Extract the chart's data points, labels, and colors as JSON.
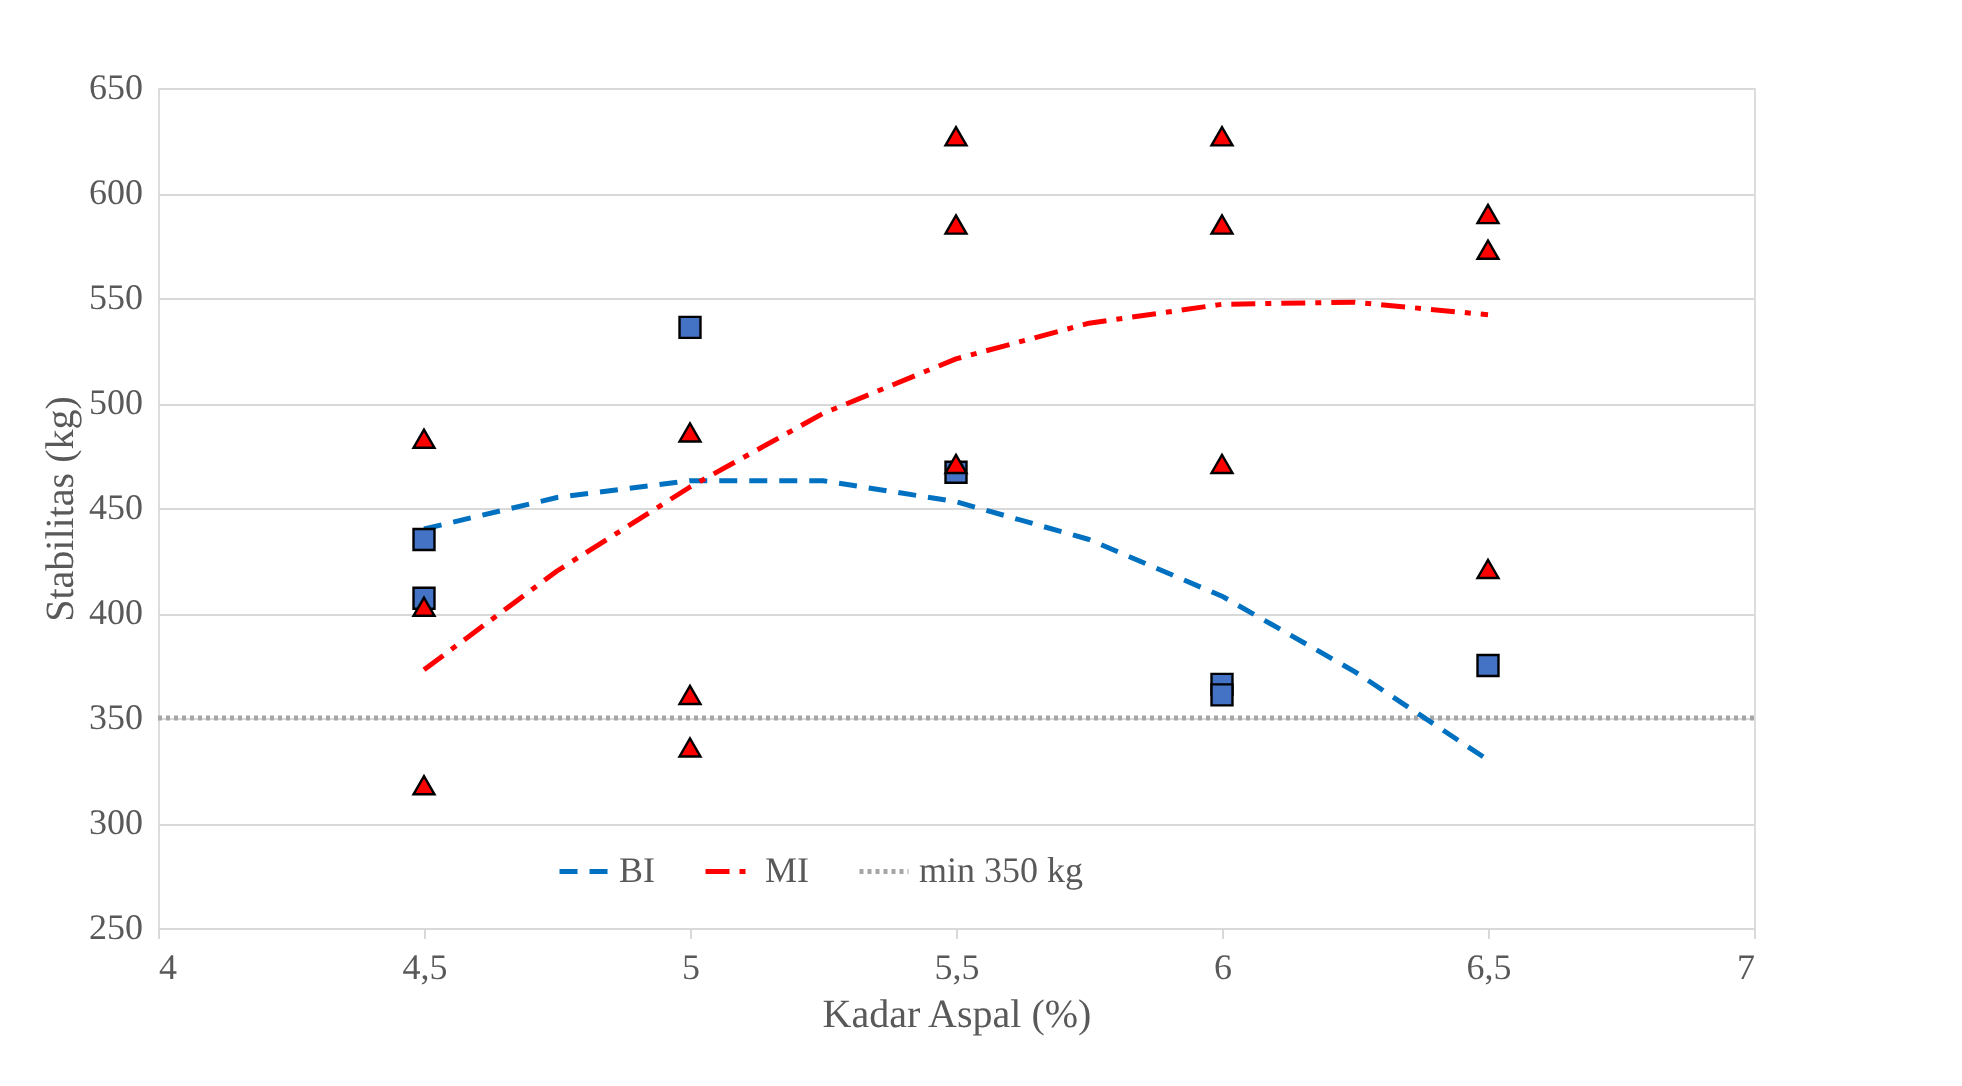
{
  "chart_data": {
    "type": "scatter",
    "xlabel": "Kadar Aspal (%)",
    "ylabel": "Stabilitas (kg)",
    "xlim": [
      4,
      7
    ],
    "xticks": [
      4,
      {
        "value": 4.5,
        "label": "4,5"
      },
      5,
      {
        "value": 5.5,
        "label": "5,5"
      },
      6,
      {
        "value": 6.5,
        "label": "6,5"
      },
      7
    ],
    "ylim": [
      250,
      650
    ],
    "yticks": [
      250,
      300,
      350,
      400,
      450,
      500,
      550,
      600,
      650
    ],
    "grid": "y",
    "legend": "bottom",
    "series": [
      {
        "color": "#4472c4",
        "marker": "square",
        "x": [
          4.5,
          4.5,
          5,
          5.5,
          6,
          6,
          6.5
        ],
        "values": [
          435,
          407,
          536,
          467,
          366,
          361,
          375
        ]
      },
      {
        "color": "#ff0000",
        "marker": "triangle",
        "x": [
          4.5,
          4.5,
          4.5,
          5,
          5,
          5,
          5.5,
          5.5,
          5.5,
          6,
          6,
          6,
          6.5,
          6.5,
          6.5
        ],
        "values": [
          483,
          403,
          318,
          486,
          361,
          336,
          627,
          585,
          471,
          627,
          585,
          471,
          590,
          573,
          421
        ]
      },
      {
        "type": "line",
        "name": "BI",
        "color": "#0070c0",
        "line_style": "dashed",
        "x": [
          4.5,
          4.75,
          5,
          5.25,
          5.5,
          5.75,
          6,
          6.25,
          6.5
        ],
        "values": [
          440,
          455,
          463,
          463,
          453,
          435,
          408,
          372,
          330
        ]
      },
      {
        "type": "line",
        "name": "MI",
        "color": "#ff0000",
        "line_style": "dashdot",
        "x": [
          4.5,
          4.75,
          5,
          5.25,
          5.5,
          5.75,
          6,
          6.25,
          6.5
        ],
        "values": [
          373,
          420,
          460,
          495,
          521,
          538,
          547,
          548,
          542
        ]
      }
    ],
    "ref_lines": [
      {
        "axis": "y",
        "value": 350,
        "label": "min 350 kg",
        "color": "#a6a6a6",
        "line_style": "dotted"
      }
    ]
  }
}
